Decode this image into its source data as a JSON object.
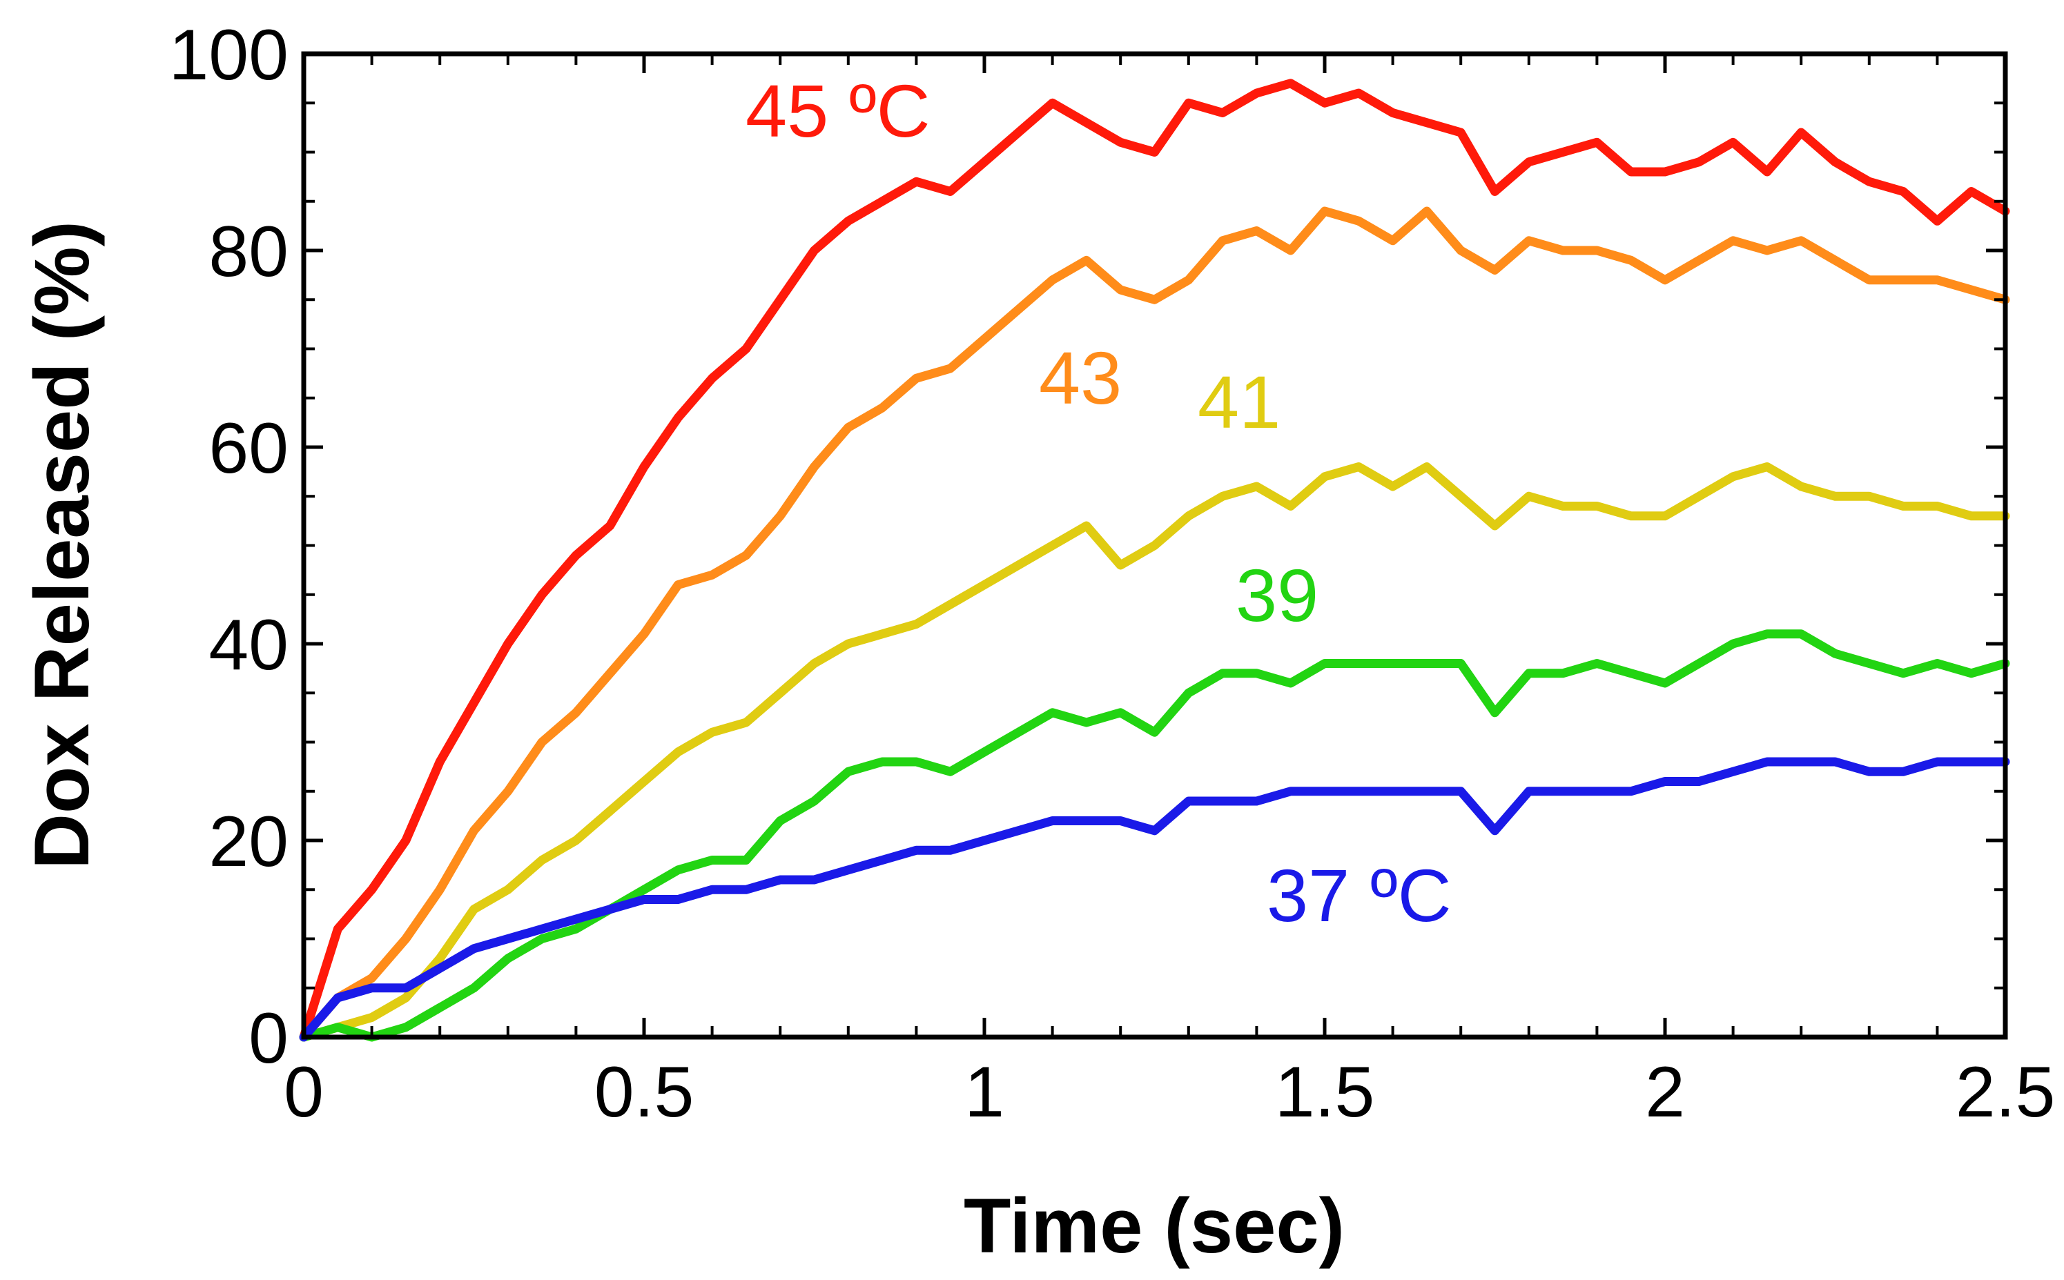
{
  "chart_data": {
    "type": "line",
    "title": "",
    "xlabel": "Time (sec)",
    "ylabel": "Dox Released (%)",
    "xlim": [
      0,
      2.5
    ],
    "ylim": [
      0,
      100
    ],
    "x_ticks": [
      0,
      0.5,
      1,
      1.5,
      2,
      2.5
    ],
    "x_tick_labels": [
      "0",
      "0.5",
      "1",
      "1.5",
      "2",
      "2.5"
    ],
    "y_ticks": [
      0,
      20,
      40,
      60,
      80,
      100
    ],
    "y_tick_labels": [
      "0",
      "20",
      "40",
      "60",
      "80",
      "100"
    ],
    "x_minor_step": 0.1,
    "y_minor_step": 5,
    "grid": false,
    "series": [
      {
        "name": "45 °C",
        "label": "45 ºC",
        "color": "#ff1a0a",
        "x": [
          0,
          0.05,
          0.1,
          0.15,
          0.2,
          0.25,
          0.3,
          0.35,
          0.4,
          0.45,
          0.5,
          0.55,
          0.6,
          0.65,
          0.7,
          0.75,
          0.8,
          0.85,
          0.9,
          0.95,
          1.0,
          1.05,
          1.1,
          1.15,
          1.2,
          1.25,
          1.3,
          1.35,
          1.4,
          1.45,
          1.5,
          1.55,
          1.6,
          1.65,
          1.7,
          1.75,
          1.8,
          1.85,
          1.9,
          1.95,
          2.0,
          2.05,
          2.1,
          2.15,
          2.2,
          2.25,
          2.3,
          2.35,
          2.4,
          2.45,
          2.5
        ],
        "y": [
          0,
          11,
          15,
          20,
          28,
          34,
          40,
          45,
          49,
          52,
          58,
          63,
          67,
          70,
          75,
          80,
          83,
          85,
          87,
          86,
          89,
          92,
          95,
          93,
          91,
          90,
          95,
          94,
          96,
          97,
          95,
          96,
          94,
          93,
          92,
          86,
          89,
          90,
          91,
          88,
          88,
          89,
          91,
          88,
          92,
          89,
          87,
          86,
          83,
          86,
          84
        ]
      },
      {
        "name": "43 °C",
        "label": "43",
        "color": "#ff8c1a",
        "x": [
          0,
          0.05,
          0.1,
          0.15,
          0.2,
          0.25,
          0.3,
          0.35,
          0.4,
          0.45,
          0.5,
          0.55,
          0.6,
          0.65,
          0.7,
          0.75,
          0.8,
          0.85,
          0.9,
          0.95,
          1.0,
          1.05,
          1.1,
          1.15,
          1.2,
          1.25,
          1.3,
          1.35,
          1.4,
          1.45,
          1.5,
          1.55,
          1.6,
          1.65,
          1.7,
          1.75,
          1.8,
          1.85,
          1.9,
          1.95,
          2.0,
          2.05,
          2.1,
          2.15,
          2.2,
          2.25,
          2.3,
          2.35,
          2.4,
          2.45,
          2.5
        ],
        "y": [
          0,
          4,
          6,
          10,
          15,
          21,
          25,
          30,
          33,
          37,
          41,
          46,
          47,
          49,
          53,
          58,
          62,
          64,
          67,
          68,
          71,
          74,
          77,
          79,
          76,
          75,
          77,
          81,
          82,
          80,
          84,
          83,
          81,
          84,
          80,
          78,
          81,
          80,
          80,
          79,
          77,
          79,
          81,
          80,
          81,
          79,
          77,
          77,
          77,
          76,
          75
        ]
      },
      {
        "name": "41 °C",
        "label": "41",
        "color": "#e0cc12",
        "x": [
          0,
          0.05,
          0.1,
          0.15,
          0.2,
          0.25,
          0.3,
          0.35,
          0.4,
          0.45,
          0.5,
          0.55,
          0.6,
          0.65,
          0.7,
          0.75,
          0.8,
          0.85,
          0.9,
          0.95,
          1.0,
          1.05,
          1.1,
          1.15,
          1.2,
          1.25,
          1.3,
          1.35,
          1.4,
          1.45,
          1.5,
          1.55,
          1.6,
          1.65,
          1.7,
          1.75,
          1.8,
          1.85,
          1.9,
          1.95,
          2.0,
          2.05,
          2.1,
          2.15,
          2.2,
          2.25,
          2.3,
          2.35,
          2.4,
          2.45,
          2.5
        ],
        "y": [
          0,
          1,
          2,
          4,
          8,
          13,
          15,
          18,
          20,
          23,
          26,
          29,
          31,
          32,
          35,
          38,
          40,
          41,
          42,
          44,
          46,
          48,
          50,
          52,
          48,
          50,
          53,
          55,
          56,
          54,
          57,
          58,
          56,
          58,
          55,
          52,
          55,
          54,
          54,
          53,
          53,
          55,
          57,
          58,
          56,
          55,
          55,
          54,
          54,
          53,
          53
        ]
      },
      {
        "name": "39 °C",
        "label": "39",
        "color": "#22d412",
        "x": [
          0,
          0.05,
          0.1,
          0.15,
          0.2,
          0.25,
          0.3,
          0.35,
          0.4,
          0.45,
          0.5,
          0.55,
          0.6,
          0.65,
          0.7,
          0.75,
          0.8,
          0.85,
          0.9,
          0.95,
          1.0,
          1.05,
          1.1,
          1.15,
          1.2,
          1.25,
          1.3,
          1.35,
          1.4,
          1.45,
          1.5,
          1.55,
          1.6,
          1.65,
          1.7,
          1.75,
          1.8,
          1.85,
          1.9,
          1.95,
          2.0,
          2.05,
          2.1,
          2.15,
          2.2,
          2.25,
          2.3,
          2.35,
          2.4,
          2.45,
          2.5
        ],
        "y": [
          0,
          1,
          0,
          1,
          3,
          5,
          8,
          10,
          11,
          13,
          15,
          17,
          18,
          18,
          22,
          24,
          27,
          28,
          28,
          27,
          29,
          31,
          33,
          32,
          33,
          31,
          35,
          37,
          37,
          36,
          38,
          38,
          38,
          38,
          38,
          33,
          37,
          37,
          38,
          37,
          36,
          38,
          40,
          41,
          41,
          39,
          38,
          37,
          38,
          37,
          38
        ]
      },
      {
        "name": "37 °C",
        "label": "37 ºC",
        "color": "#1a1ae8",
        "x": [
          0,
          0.05,
          0.1,
          0.15,
          0.2,
          0.25,
          0.3,
          0.35,
          0.4,
          0.45,
          0.5,
          0.55,
          0.6,
          0.65,
          0.7,
          0.75,
          0.8,
          0.85,
          0.9,
          0.95,
          1.0,
          1.05,
          1.1,
          1.15,
          1.2,
          1.25,
          1.3,
          1.35,
          1.4,
          1.45,
          1.5,
          1.55,
          1.6,
          1.65,
          1.7,
          1.75,
          1.8,
          1.85,
          1.9,
          1.95,
          2.0,
          2.05,
          2.1,
          2.15,
          2.2,
          2.25,
          2.3,
          2.35,
          2.4,
          2.45,
          2.5
        ],
        "y": [
          0,
          4,
          5,
          5,
          7,
          9,
          10,
          11,
          12,
          13,
          14,
          14,
          15,
          15,
          16,
          16,
          17,
          18,
          19,
          19,
          20,
          21,
          22,
          22,
          22,
          21,
          24,
          24,
          24,
          25,
          25,
          25,
          25,
          25,
          25,
          21,
          25,
          25,
          25,
          25,
          26,
          26,
          27,
          28,
          28,
          28,
          27,
          27,
          28,
          28,
          28
        ]
      }
    ]
  }
}
